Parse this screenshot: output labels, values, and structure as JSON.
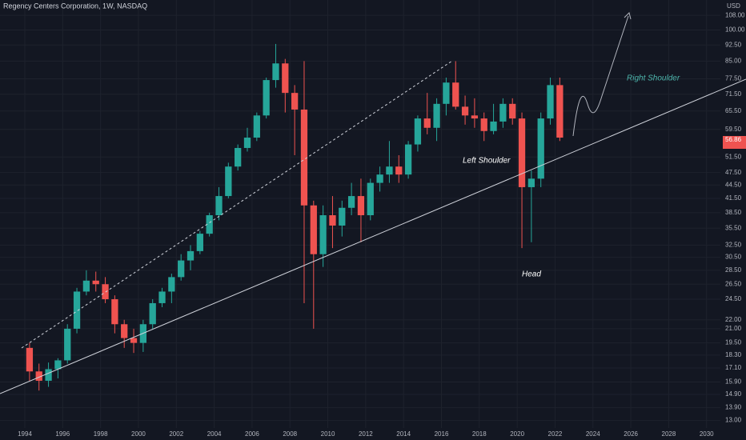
{
  "chart_data": {
    "type": "candlestick",
    "title": "Regency Centers Corporation, 1W, NASDAQ",
    "currency": "USD",
    "price_label": "56.86",
    "annotations": [
      "Left Shoulder",
      "Head",
      "Right Shoulder"
    ],
    "log_scale": true,
    "grid": true,
    "up_color": "#26a69a",
    "down_color": "#ef5350",
    "x": [
      1994.0,
      1994.5,
      1995.0,
      1995.5,
      1996.0,
      1996.5,
      1997.0,
      1997.5,
      1998.0,
      1998.5,
      1999.0,
      1999.5,
      2000.0,
      2000.5,
      2001.0,
      2001.5,
      2002.0,
      2002.5,
      2003.0,
      2003.5,
      2004.0,
      2004.5,
      2005.0,
      2005.5,
      2006.0,
      2006.5,
      2007.0,
      2007.5,
      2008.0,
      2008.5,
      2009.0,
      2009.5,
      2010.0,
      2010.5,
      2011.0,
      2011.5,
      2012.0,
      2012.5,
      2013.0,
      2013.5,
      2014.0,
      2014.5,
      2015.0,
      2015.5,
      2016.0,
      2016.5,
      2017.0,
      2017.5,
      2018.0,
      2018.5,
      2019.0,
      2019.5,
      2020.0,
      2020.5,
      2021.0,
      2021.5,
      2022.0
    ],
    "open": [
      19,
      16.8,
      16,
      17,
      17.8,
      21,
      25.5,
      27,
      26.5,
      24.5,
      21.5,
      20,
      19.5,
      21.5,
      24,
      25.5,
      27.5,
      30,
      31.5,
      34.5,
      38,
      42,
      49,
      54,
      57,
      64,
      77,
      84,
      72,
      66,
      40,
      31,
      38,
      36,
      39.5,
      42,
      38,
      45,
      47,
      49,
      47,
      55,
      63,
      60,
      68,
      76,
      67,
      64,
      63,
      59,
      62,
      68,
      63,
      44,
      46,
      63,
      75
    ],
    "high": [
      19.5,
      17.5,
      17.6,
      18,
      21.5,
      26,
      28.5,
      28.3,
      27.5,
      25,
      22,
      21,
      22,
      24.5,
      26,
      28,
      31,
      32.5,
      35,
      38.5,
      44,
      50,
      55,
      60,
      65,
      78,
      93,
      86,
      75,
      85,
      41,
      40,
      42,
      41,
      45,
      46,
      46,
      49,
      56,
      52,
      56,
      64,
      72,
      70,
      78,
      85,
      71,
      70,
      65,
      68,
      70,
      70,
      65,
      48,
      65,
      78,
      78
    ],
    "low": [
      16,
      15.2,
      15.5,
      16.2,
      17.5,
      20.5,
      25,
      25.5,
      24,
      20.5,
      19,
      18.5,
      18.6,
      21,
      23.5,
      24,
      27,
      28.5,
      31,
      34,
      37,
      41.5,
      48,
      53,
      56,
      63,
      74,
      65,
      52,
      24,
      21,
      29,
      32,
      34,
      38,
      33,
      37,
      43,
      45,
      45,
      46,
      53,
      58,
      56,
      64,
      66,
      61,
      60,
      56,
      58,
      60,
      61,
      32,
      33,
      44,
      61,
      56
    ],
    "close": [
      16.8,
      16,
      17,
      17.8,
      21,
      25.5,
      27,
      26.5,
      24.5,
      21.5,
      20,
      19.5,
      21.5,
      24,
      25.5,
      27.5,
      30,
      31.5,
      34.5,
      38,
      42,
      49,
      54,
      57,
      64,
      77,
      84,
      72,
      66,
      40,
      31,
      38,
      36,
      39.5,
      42,
      38,
      45,
      47,
      49,
      47,
      55,
      63,
      60,
      68,
      76,
      67,
      64,
      63,
      59,
      62,
      68,
      63,
      44,
      46,
      63,
      75,
      57
    ],
    "xlim": [
      1992.69,
      2030.73
    ],
    "xticks": [
      1994,
      1996,
      1998,
      2000,
      2002,
      2004,
      2006,
      2008,
      2010,
      2012,
      2014,
      2016,
      2018,
      2020,
      2022,
      2024,
      2026,
      2028,
      2030
    ],
    "ylim": [
      12.5,
      117
    ],
    "yticks": [
      {
        "value": 13,
        "label": "13.00"
      },
      {
        "value": 13.9,
        "label": "13.90"
      },
      {
        "value": 14.9,
        "label": "14.90"
      },
      {
        "value": 15.9,
        "label": "15.90"
      },
      {
        "value": 17.1,
        "label": "17.10"
      },
      {
        "value": 18.3,
        "label": "18.30"
      },
      {
        "value": 19.5,
        "label": "19.50"
      },
      {
        "value": 21,
        "label": "21.00"
      },
      {
        "value": 22,
        "label": "22.00"
      },
      {
        "value": 24.5,
        "label": "24.50"
      },
      {
        "value": 26.5,
        "label": "26.50"
      },
      {
        "value": 28.5,
        "label": "28.50"
      },
      {
        "value": 30.5,
        "label": "30.50"
      },
      {
        "value": 32.5,
        "label": "32.50"
      },
      {
        "value": 35.5,
        "label": "35.50"
      },
      {
        "value": 38.5,
        "label": "38.50"
      },
      {
        "value": 41.5,
        "label": "41.50"
      },
      {
        "value": 44.5,
        "label": "44.50"
      },
      {
        "value": 47.5,
        "label": "47.50"
      },
      {
        "value": 51.5,
        "label": "51.50"
      },
      {
        "value": 59.5,
        "label": "59.50"
      },
      {
        "value": 65.5,
        "label": "65.50"
      },
      {
        "value": 71.5,
        "label": "71.50"
      },
      {
        "value": 77.5,
        "label": "77.50"
      },
      {
        "value": 85,
        "label": "85.00"
      },
      {
        "value": 92.5,
        "label": "92.50"
      },
      {
        "value": 100,
        "label": "100.00"
      },
      {
        "value": 108,
        "label": "108.00"
      }
    ]
  }
}
